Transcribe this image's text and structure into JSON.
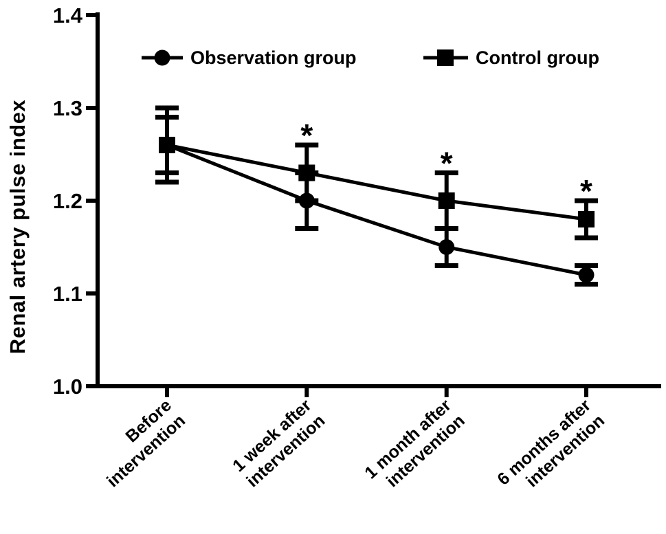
{
  "chart_data": {
    "type": "line",
    "title": "",
    "xlabel": "",
    "ylabel": "Renal artery pulse index",
    "ylim": [
      1.0,
      1.4
    ],
    "yticks": [
      "1.0",
      "1.1",
      "1.2",
      "1.3",
      "1.4"
    ],
    "categories": [
      "Before intervention",
      "1 week after intervention",
      "1 month after intervention",
      "6 months after intervention"
    ],
    "category_lines": [
      [
        "Before",
        "intervention"
      ],
      [
        "1 week after",
        "intervention"
      ],
      [
        "1 month after",
        "intervention"
      ],
      [
        "6 months after",
        "intervention"
      ]
    ],
    "series": [
      {
        "name": "Observation group",
        "marker": "circle",
        "color": "#000000",
        "values": [
          1.26,
          1.2,
          1.15,
          1.12
        ],
        "errors": [
          0.03,
          0.03,
          0.02,
          0.01
        ]
      },
      {
        "name": "Control group",
        "marker": "square",
        "color": "#000000",
        "values": [
          1.26,
          1.23,
          1.2,
          1.18
        ],
        "errors": [
          0.04,
          0.03,
          0.03,
          0.02
        ]
      }
    ],
    "significance": {
      "symbol": "*",
      "series": "Control group",
      "category_indices": [
        1,
        2,
        3
      ]
    },
    "legend_position": "top-inside",
    "grid": false,
    "colors": {
      "foreground": "#000000",
      "background": "#ffffff"
    }
  }
}
